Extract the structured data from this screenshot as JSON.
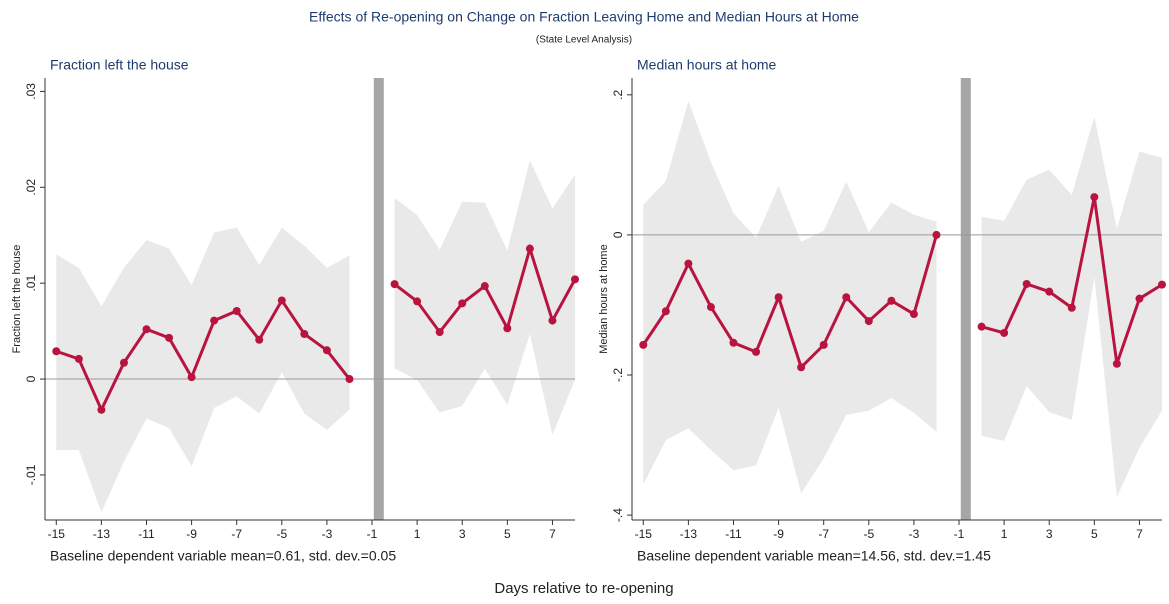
{
  "title": "Effects of Re-opening on Change on Fraction Leaving Home and Median Hours at Home",
  "subtitle": "(State Level Analysis)",
  "x_label": "Days relative to re-opening",
  "chart_data": [
    {
      "type": "line",
      "title": "Fraction left the house",
      "y_label": "Fraction left the house",
      "note": "Baseline dependent variable mean=0.61, std. dev.=0.05",
      "x": [
        -15,
        -14,
        -13,
        -12,
        -11,
        -10,
        -9,
        -8,
        -7,
        -6,
        -5,
        -4,
        -3,
        -2,
        -1,
        0,
        1,
        2,
        3,
        4,
        5,
        6,
        7,
        8
      ],
      "values": [
        0.0029,
        0.0021,
        -0.0032,
        0.0017,
        0.0052,
        0.0043,
        0.0002,
        0.0061,
        0.0071,
        0.0041,
        0.0082,
        0.0047,
        0.003,
        0,
        null,
        0.0099,
        0.0081,
        0.0049,
        0.0079,
        0.0097,
        0.0053,
        0.0136,
        0.0061,
        0.0104
      ],
      "upper": [
        0.013,
        0.0116,
        0.0076,
        0.0116,
        0.0145,
        0.0136,
        0.0098,
        0.0153,
        0.0158,
        0.0119,
        0.0158,
        0.0139,
        0.0116,
        0.0129,
        null,
        0.0189,
        0.0171,
        0.0135,
        0.0185,
        0.0184,
        0.0134,
        0.0228,
        0.0178,
        0.0213
      ],
      "lower": [
        -0.0074,
        -0.0074,
        -0.0139,
        -0.0086,
        -0.0041,
        -0.0051,
        -0.0091,
        -0.003,
        -0.0018,
        -0.0036,
        0.0007,
        -0.0036,
        -0.0053,
        -0.0032,
        null,
        0.0011,
        -0.0001,
        -0.0035,
        -0.0028,
        0.0011,
        -0.0027,
        0.0047,
        -0.0058,
        -0.0001
      ],
      "color": "#b8143f",
      "band_color": "#e9e9e9",
      "event_color": "#a6a6a6",
      "hline": 0,
      "event_x": -0.7,
      "xlim": [
        -15.5,
        8
      ],
      "xticks": [
        -15,
        -13,
        -11,
        -9,
        -7,
        -5,
        -3,
        -1,
        1,
        3,
        5,
        7
      ],
      "ylim": [
        -0.0147,
        0.0314
      ],
      "yticks": [
        {
          "value": -0.01,
          "label": "-.01"
        },
        0,
        {
          "value": 0.01,
          "label": ".01"
        },
        {
          "value": 0.02,
          "label": ".02"
        },
        {
          "value": 0.03,
          "label": ".03"
        }
      ]
    },
    {
      "type": "line",
      "title": "Median hours at home",
      "y_label": "Median hours at home",
      "note": "Baseline dependent variable mean=14.56, std. dev.=1.45",
      "x": [
        -15,
        -14,
        -13,
        -12,
        -11,
        -10,
        -9,
        -8,
        -7,
        -6,
        -5,
        -4,
        -3,
        -2,
        -1,
        0,
        1,
        2,
        3,
        4,
        5,
        6,
        7,
        8
      ],
      "values": [
        -0.157,
        -0.109,
        -0.041,
        -0.103,
        -0.154,
        -0.167,
        -0.089,
        -0.189,
        -0.157,
        -0.089,
        -0.123,
        -0.094,
        -0.113,
        0,
        null,
        -0.131,
        -0.14,
        -0.07,
        -0.081,
        -0.104,
        0.054,
        -0.184,
        -0.091,
        -0.071
      ],
      "upper": [
        0.043,
        0.077,
        0.191,
        0.104,
        0.031,
        -0.004,
        0.07,
        -0.01,
        0.006,
        0.076,
        0.004,
        0.046,
        0.029,
        0.019,
        null,
        0.026,
        0.02,
        0.079,
        0.093,
        0.057,
        0.169,
        0.009,
        0.119,
        0.11
      ],
      "lower": [
        -0.356,
        -0.293,
        -0.276,
        -0.307,
        -0.336,
        -0.329,
        -0.247,
        -0.369,
        -0.319,
        -0.257,
        -0.251,
        -0.233,
        -0.254,
        -0.281,
        null,
        -0.287,
        -0.294,
        -0.216,
        -0.253,
        -0.264,
        -0.06,
        -0.374,
        -0.304,
        -0.251
      ],
      "color": "#b8143f",
      "band_color": "#e9e9e9",
      "event_color": "#a6a6a6",
      "hline": 0,
      "event_x": -0.7,
      "xlim": [
        -15.5,
        8
      ],
      "xticks": [
        -15,
        -13,
        -11,
        -9,
        -7,
        -5,
        -3,
        -1,
        1,
        3,
        5,
        7
      ],
      "ylim": [
        -0.407,
        0.224
      ],
      "yticks": [
        {
          "value": -0.4,
          "label": "-.4"
        },
        {
          "value": -0.2,
          "label": "-.2"
        },
        0,
        {
          "value": 0.2,
          "label": ".2"
        }
      ]
    }
  ]
}
